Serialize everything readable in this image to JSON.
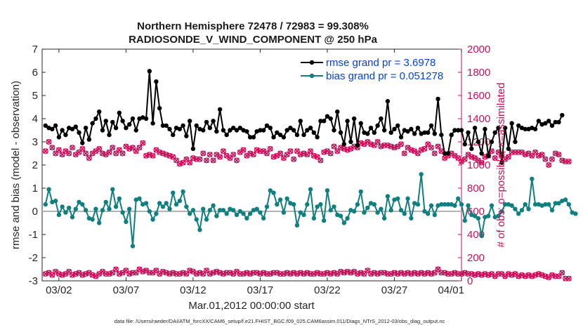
{
  "chart_data": {
    "type": "line",
    "title_line1": "Northern Hemisphere 72478 / 72983 = 99.308%",
    "title_line2": "RADIOSONDE_V_WIND_COMPONENT @ 250 hPa",
    "ylabel_left": "rmse and bias (model - observation)",
    "ylabel_right": "# of obs: o=possible; ×=assimilated",
    "xlabel": "Mar.01,2012 00:00:00 start",
    "footnote": "data file: /Users/raeder/DAI/ATM_forcXX/CAM6_setup/f.e21.FHIST_BGC.f09_025.CAM6assim.011/Diags_NTrS_2012-03/obs_diag_output.nc",
    "ylim_left": [
      -3,
      7
    ],
    "yticks_left": [
      "-3",
      "-2",
      "-1",
      "0",
      "1",
      "2",
      "3",
      "4",
      "5",
      "6",
      "7"
    ],
    "ylim_right": [
      0,
      2000
    ],
    "yticks_right": [
      "0",
      "200",
      "400",
      "600",
      "800",
      "1000",
      "1200",
      "1400",
      "1600",
      "1800",
      "2000"
    ],
    "xlim": [
      0.75,
      32
    ],
    "xticks": [
      {
        "label": "03/02",
        "x": 2
      },
      {
        "label": "03/07",
        "x": 7
      },
      {
        "label": "03/12",
        "x": 12
      },
      {
        "label": "03/17",
        "x": 17
      },
      {
        "label": "03/22",
        "x": 22
      },
      {
        "label": "03/27",
        "x": 27
      },
      {
        "label": "04/01",
        "x": 32
      }
    ],
    "x_start": 1,
    "x_step": 0.25,
    "legend_position": "top-right",
    "colors": {
      "rmse": "#000000",
      "bias": "#107f7f",
      "obs": "#cc0e5a",
      "zero_line": "#b3b3b3"
    },
    "series": [
      {
        "name": "rmse grand pr = 3.6978",
        "axis": "left",
        "values": [
          3.7,
          3.6,
          3.55,
          3.7,
          3.2,
          3.5,
          3.3,
          3.6,
          3.55,
          3.65,
          3.4,
          2.95,
          3.6,
          3.1,
          3.8,
          4.0,
          4.3,
          3.5,
          3.9,
          3.3,
          3.85,
          3.6,
          4.25,
          3.9,
          3.6,
          3.75,
          4.0,
          3.5,
          4.0,
          4.05,
          4.0,
          6.05,
          3.8,
          5.6,
          4.45,
          3.7,
          3.7,
          3.55,
          3.3,
          3.6,
          3.55,
          3.7,
          3.25,
          3.9,
          2.7,
          3.7,
          3.55,
          3.5,
          3.85,
          3.6,
          3.9,
          3.45,
          4.4,
          3.5,
          3.3,
          3.5,
          3.6,
          3.5,
          3.6,
          3.5,
          3.45,
          3.2,
          3.2,
          3.45,
          3.5,
          3.5,
          3.7,
          3.6,
          3.2,
          3.4,
          3.3,
          3.2,
          3.5,
          3.6,
          3.5,
          3.3,
          3.9,
          3.3,
          3.5,
          3.6,
          3.4,
          3.2,
          3.9,
          3.9,
          4.1,
          4.0,
          3.5,
          4.3,
          3.4,
          2.9,
          3.9,
          3.0,
          4.0,
          2.85,
          3.8,
          3.4,
          3.35,
          3.6,
          3.4,
          3.7,
          4.0,
          3.5,
          4.75,
          3.4,
          3.55,
          3.7,
          3.2,
          3.5,
          3.45,
          3.55,
          3.35,
          3.6,
          3.35,
          3.4,
          3.4,
          3.7,
          3.35,
          4.85,
          3.3,
          2.5,
          2.5,
          3.3,
          3.5,
          3.5,
          3.5,
          2.9,
          3.4,
          2.7,
          3.6,
          3.0,
          2.5,
          3.55,
          2.4,
          3.0,
          3.4,
          3.6,
          2.1,
          3.6,
          2.7,
          3.8,
          3.0,
          3.7,
          3.6,
          3.55,
          3.55,
          3.6,
          3.55,
          3.9,
          3.75,
          3.8,
          3.9,
          3.7,
          3.85,
          3.85,
          4.15
        ]
      },
      {
        "name": "bias grand pr = 0.051278",
        "axis": "left",
        "values": [
          0.3,
          0.95,
          0.4,
          0.45,
          -0.15,
          0.2,
          -0.05,
          0.15,
          -0.25,
          0.1,
          0.4,
          0.3,
          0.05,
          -0.3,
          -0.35,
          0.1,
          -0.5,
          0.05,
          0.4,
          0.1,
          0.95,
          0.2,
          0.55,
          -0.05,
          -0.45,
          0.1,
          -1.5,
          0.5,
          0.55,
          0.3,
          0.35,
          0.0,
          -0.35,
          -0.1,
          0.35,
          0.2,
          0.35,
          0.1,
          0.8,
          0.3,
          0.45,
          0.85,
          0.2,
          -0.1,
          0.05,
          -0.35,
          -0.8,
          0.1,
          -0.35,
          0.05,
          0.25,
          -0.2,
          0.05,
          0.05,
          -0.1,
          0.1,
          0.05,
          -0.15,
          0.0,
          -0.1,
          -0.3,
          -0.1,
          0.05,
          0.1,
          -0.05,
          -0.3,
          0.2,
          0.9,
          0.8,
          0.3,
          0.5,
          -0.05,
          0.55,
          0.35,
          0.3,
          -0.6,
          -0.05,
          -0.15,
          0.3,
          0.95,
          -0.3,
          0.2,
          0.3,
          -0.4,
          0.9,
          0.05,
          0.2,
          -0.15,
          -0.2,
          -0.5,
          -0.3,
          0.05,
          0.0,
          0.3,
          0.85,
          -0.05,
          0.15,
          0.35,
          0.3,
          -0.05,
          0.1,
          -0.3,
          0.65,
          0.05,
          0.5,
          0.55,
          0.05,
          -0.1,
          0.55,
          -0.3,
          0.35,
          0.3,
          1.6,
          0.0,
          -0.1,
          0.25,
          -0.15,
          0.25,
          0.3,
          0.3,
          0.3,
          0.3,
          0.25,
          0.55,
          0.3,
          -0.4,
          0.25,
          -0.15,
          -0.2,
          -0.3,
          -1.05,
          -0.25,
          -0.2,
          0.25,
          -0.25,
          -0.2,
          0.0,
          0.3,
          0.3,
          0.25,
          0.1,
          -0.1,
          0.05,
          0.3,
          0.1,
          1.4,
          0.3,
          0.3,
          0.25,
          0.3,
          0.3,
          0.05,
          0.35,
          0.35,
          0.45,
          0.5,
          0.3,
          -0.05,
          -0.1
        ]
      },
      {
        "name": "obs possible",
        "axis": "right",
        "values": [
          1120,
          1200,
          1150,
          1100,
          1130,
          1090,
          1120,
          1100,
          1150,
          1090,
          1110,
          1140,
          1100,
          1060,
          1100,
          1120,
          1140,
          1100,
          1090,
          1110,
          1150,
          1100,
          1130,
          1100,
          1160,
          1140,
          1150,
          1120,
          1150,
          1190,
          1080,
          1090,
          1080,
          1130,
          1110,
          1100,
          1090,
          1080,
          1070,
          1040,
          1010,
          1020,
          1050,
          1020,
          1060,
          1050,
          1050,
          1100,
          1040,
          1090,
          1040,
          1090,
          1070,
          1120,
          1080,
          1060,
          1090,
          1040,
          1110,
          1130,
          1080,
          1100,
          1090,
          1130,
          1120,
          1120,
          1100,
          1140,
          1070,
          1080,
          1100,
          1060,
          1090,
          1120,
          1050,
          1120,
          1090,
          1100,
          1090,
          1120,
          1080,
          1070,
          1040,
          1110,
          1120,
          1100,
          1160,
          1120,
          1150,
          1140,
          1130,
          1140,
          1160,
          1150,
          1190,
          1180,
          1200,
          1180,
          1170,
          1200,
          1160,
          1170,
          1170,
          1160,
          1150,
          1160,
          1180,
          1100,
          1150,
          1130,
          1120,
          1100,
          1130,
          1140,
          1180,
          1150,
          1100,
          1160,
          1120,
          1060,
          1080,
          1100,
          1080,
          1060,
          1030,
          1050,
          1090,
          1070,
          1060,
          1040,
          1020,
          1070,
          1080,
          1120,
          1060,
          1110,
          1090,
          1050,
          1070,
          1110,
          1110,
          1110,
          1110,
          1090,
          1100,
          1080,
          1110,
          1080,
          1090,
          1050,
          1000,
          1050,
          1100,
          1090,
          1040,
          1030,
          1030
        ]
      },
      {
        "name": "obs assimilated",
        "axis": "right",
        "values": [
          60,
          70,
          50,
          80,
          60,
          50,
          60,
          80,
          50,
          60,
          70,
          50,
          60,
          70,
          50,
          40,
          60,
          80,
          60,
          60,
          70,
          100,
          60,
          70,
          90,
          60,
          70,
          70,
          100,
          80,
          90,
          70,
          70,
          90,
          60,
          80,
          70,
          60,
          70,
          60,
          60,
          70,
          60,
          90,
          80,
          60,
          70,
          60,
          90,
          60,
          70,
          80,
          70,
          60,
          70,
          70,
          60,
          80,
          60,
          60,
          70,
          60,
          70,
          70,
          60,
          70,
          60,
          60,
          70,
          70,
          60,
          60,
          70,
          60,
          70,
          60,
          70,
          60,
          70,
          60,
          60,
          70,
          60,
          60,
          70,
          60,
          70,
          60,
          80,
          70,
          80,
          70,
          80,
          60,
          70,
          60,
          90,
          60,
          70,
          60,
          70,
          70,
          60,
          60,
          70,
          60,
          70,
          60,
          70,
          60,
          70,
          60,
          70,
          60,
          70,
          60,
          70,
          100,
          70,
          70,
          60,
          60,
          70,
          60,
          60,
          70,
          60,
          60,
          50,
          60,
          50,
          60,
          50,
          60,
          40,
          60,
          60,
          40,
          60,
          50,
          60,
          40,
          50,
          40,
          50,
          40,
          50,
          60,
          50,
          40,
          30,
          50,
          40,
          40,
          70,
          20,
          20
        ]
      }
    ]
  }
}
